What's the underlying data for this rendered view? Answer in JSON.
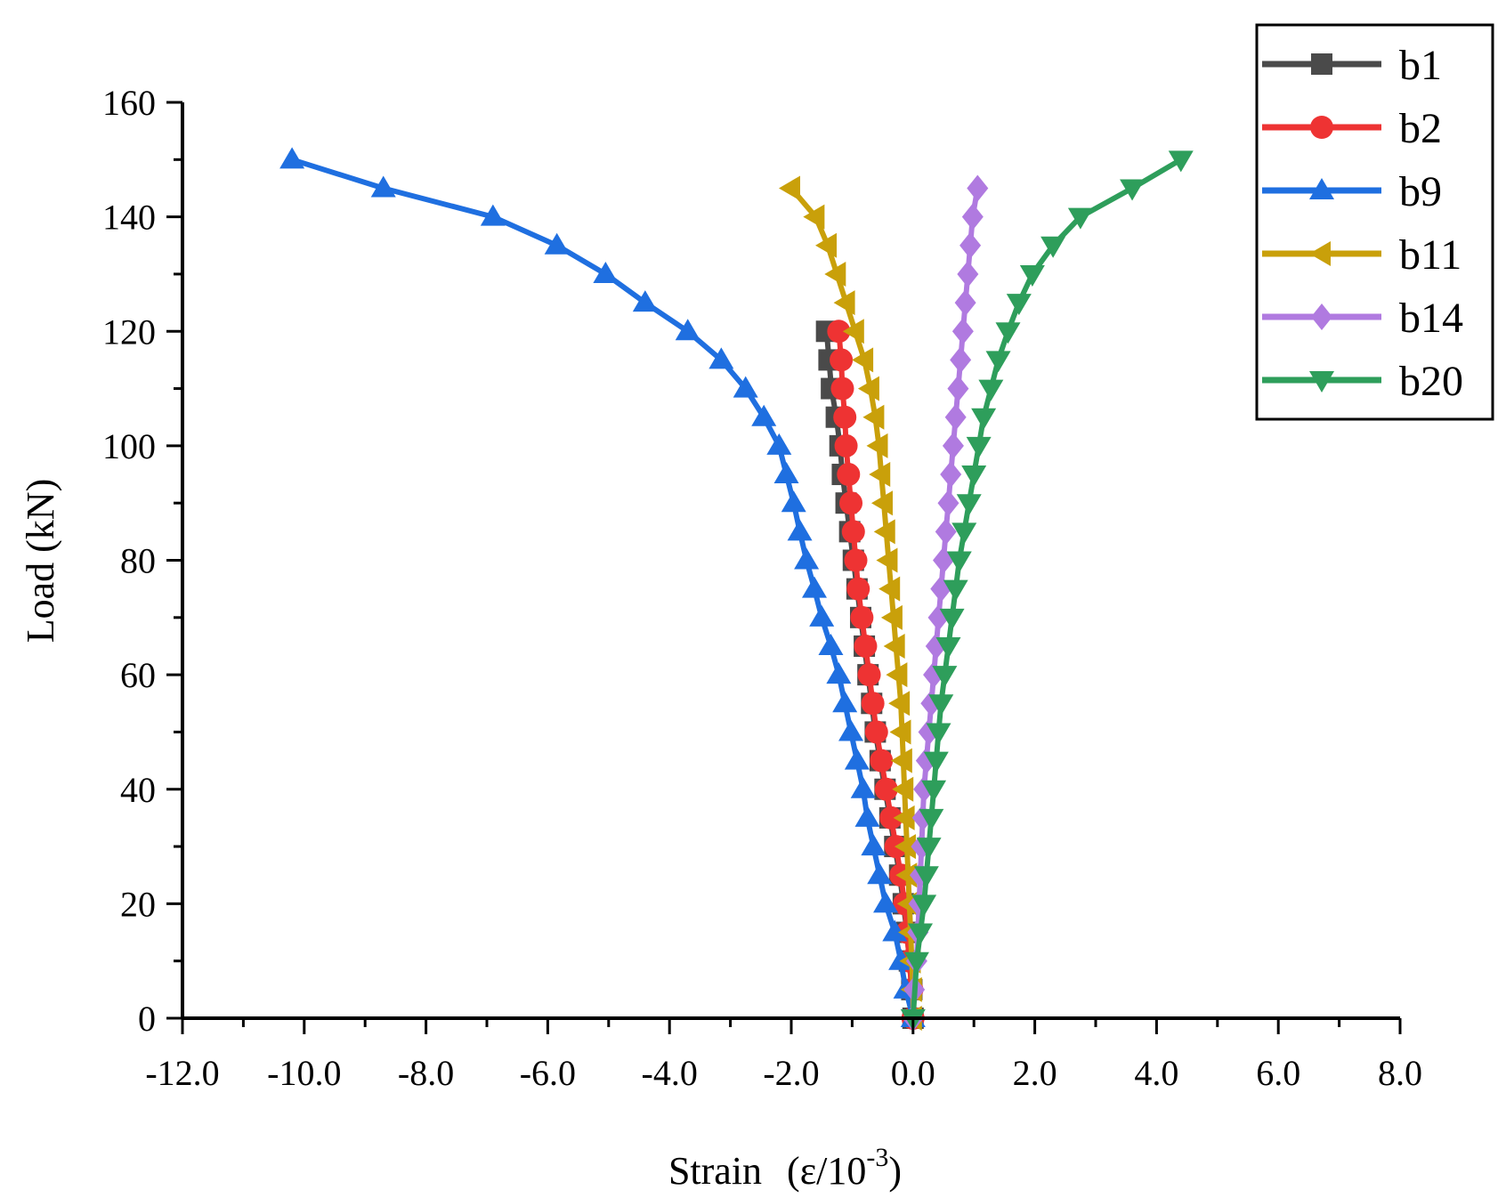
{
  "chart_data": {
    "type": "line",
    "title": "",
    "xlabel": "Strain",
    "xlabel_unit_prefix": "(ε/10",
    "xlabel_unit_exp": "-3",
    "xlabel_unit_suffix": ")",
    "ylabel": "Load (kN)",
    "xlim": [
      -12,
      8
    ],
    "ylim": [
      0,
      160
    ],
    "xticks": [
      -12,
      -10,
      -8,
      -6,
      -4,
      -2,
      0,
      2,
      4,
      6,
      8
    ],
    "xtick_labels": [
      "-12.0",
      "-10.0",
      "-8.0",
      "-6.0",
      "-4.0",
      "-2.0",
      "0.0",
      "2.0",
      "4.0",
      "6.0",
      "8.0"
    ],
    "yticks": [
      0,
      20,
      40,
      60,
      80,
      100,
      120,
      140,
      160
    ],
    "ytick_labels": [
      "0",
      "20",
      "40",
      "60",
      "80",
      "100",
      "120",
      "140",
      "160"
    ],
    "grid": false,
    "legend_position": "top-right",
    "series": [
      {
        "name": "b1",
        "color": "#4a4a4a",
        "marker": "square",
        "x": [
          0,
          -0.02,
          -0.06,
          -0.1,
          -0.16,
          -0.22,
          -0.3,
          -0.38,
          -0.46,
          -0.54,
          -0.62,
          -0.68,
          -0.74,
          -0.8,
          -0.86,
          -0.92,
          -0.98,
          -1.04,
          -1.1,
          -1.16,
          -1.2,
          -1.26,
          -1.34,
          -1.38,
          -1.42
        ],
        "y": [
          0,
          5,
          10,
          15,
          20,
          25,
          30,
          35,
          40,
          45,
          50,
          55,
          60,
          65,
          70,
          75,
          80,
          85,
          90,
          95,
          100,
          105,
          110,
          115,
          120
        ]
      },
      {
        "name": "b2",
        "color": "#ee3333",
        "marker": "circle",
        "x": [
          0,
          -0.02,
          -0.06,
          -0.1,
          -0.14,
          -0.2,
          -0.28,
          -0.36,
          -0.44,
          -0.52,
          -0.6,
          -0.66,
          -0.72,
          -0.78,
          -0.84,
          -0.9,
          -0.94,
          -0.98,
          -1.02,
          -1.06,
          -1.1,
          -1.12,
          -1.16,
          -1.18,
          -1.22
        ],
        "y": [
          0,
          5,
          10,
          15,
          20,
          25,
          30,
          35,
          40,
          45,
          50,
          55,
          60,
          65,
          70,
          75,
          80,
          85,
          90,
          95,
          100,
          105,
          110,
          115,
          120
        ]
      },
      {
        "name": "b9",
        "color": "#1f6fe0",
        "marker": "triangle-up",
        "x": [
          0,
          -0.12,
          -0.2,
          -0.3,
          -0.45,
          -0.55,
          -0.65,
          -0.75,
          -0.82,
          -0.92,
          -1.02,
          -1.12,
          -1.22,
          -1.35,
          -1.5,
          -1.62,
          -1.75,
          -1.86,
          -1.96,
          -2.08,
          -2.2,
          -2.45,
          -2.75,
          -3.15,
          -3.7,
          -4.4,
          -5.05,
          -5.85,
          -6.9,
          -8.7,
          -10.2
        ],
        "y": [
          0,
          5,
          10,
          15,
          20,
          25,
          30,
          35,
          40,
          45,
          50,
          55,
          60,
          65,
          70,
          75,
          80,
          85,
          90,
          95,
          100,
          105,
          110,
          115,
          120,
          125,
          130,
          135,
          140,
          145,
          150
        ]
      },
      {
        "name": "b11",
        "color": "#c9a00a",
        "marker": "triangle-left",
        "x": [
          0,
          0,
          -0.02,
          -0.04,
          -0.06,
          -0.08,
          -0.1,
          -0.12,
          -0.14,
          -0.16,
          -0.18,
          -0.2,
          -0.24,
          -0.28,
          -0.32,
          -0.36,
          -0.4,
          -0.44,
          -0.48,
          -0.52,
          -0.56,
          -0.62,
          -0.7,
          -0.8,
          -0.95,
          -1.1,
          -1.25,
          -1.4,
          -1.6,
          -2.0
        ],
        "y": [
          0,
          5,
          10,
          15,
          20,
          25,
          30,
          35,
          40,
          45,
          50,
          55,
          60,
          65,
          70,
          75,
          80,
          85,
          90,
          95,
          100,
          105,
          110,
          115,
          120,
          125,
          130,
          135,
          140,
          145
        ]
      },
      {
        "name": "b14",
        "color": "#b07ae0",
        "marker": "diamond",
        "x": [
          0,
          0.02,
          0.06,
          0.08,
          0.1,
          0.12,
          0.14,
          0.16,
          0.18,
          0.22,
          0.26,
          0.3,
          0.34,
          0.38,
          0.42,
          0.46,
          0.5,
          0.54,
          0.58,
          0.62,
          0.66,
          0.7,
          0.74,
          0.78,
          0.82,
          0.86,
          0.9,
          0.94,
          0.98,
          1.06
        ],
        "y": [
          0,
          5,
          10,
          15,
          20,
          25,
          30,
          35,
          40,
          45,
          50,
          55,
          60,
          65,
          70,
          75,
          80,
          85,
          90,
          95,
          100,
          105,
          110,
          115,
          120,
          125,
          130,
          135,
          140,
          145
        ]
      },
      {
        "name": "b20",
        "color": "#2e9e5b",
        "marker": "triangle-down",
        "x": [
          0,
          0.06,
          0.12,
          0.18,
          0.22,
          0.26,
          0.3,
          0.34,
          0.38,
          0.42,
          0.46,
          0.52,
          0.58,
          0.64,
          0.7,
          0.76,
          0.84,
          0.92,
          1.0,
          1.08,
          1.16,
          1.28,
          1.4,
          1.56,
          1.74,
          1.96,
          2.3,
          2.75,
          3.6,
          4.4
        ],
        "y": [
          0,
          10,
          15,
          20,
          25,
          30,
          35,
          40,
          45,
          50,
          55,
          60,
          65,
          70,
          75,
          80,
          85,
          90,
          95,
          100,
          105,
          110,
          115,
          120,
          125,
          130,
          135,
          140,
          145,
          150
        ]
      }
    ]
  }
}
